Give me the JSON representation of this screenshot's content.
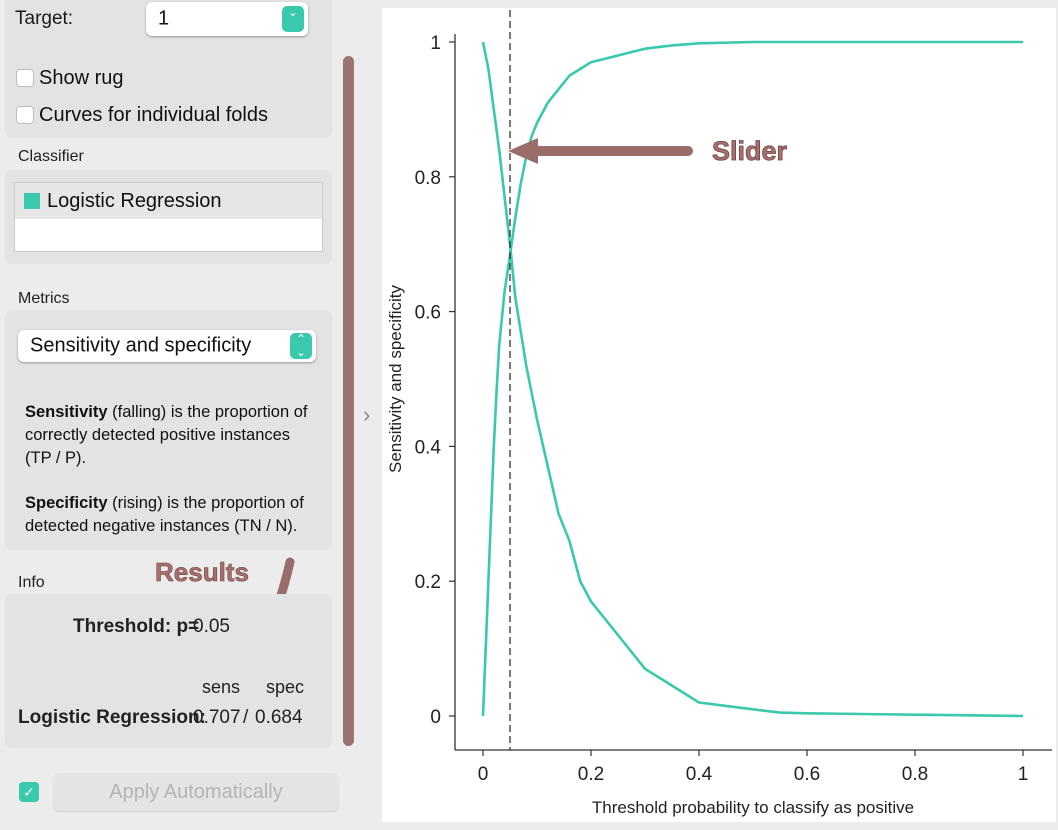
{
  "sidebar": {
    "target": {
      "label": "Target:",
      "value": "1"
    },
    "show_rug": {
      "label": "Show rug",
      "checked": false
    },
    "curves_folds": {
      "label": "Curves for individual folds",
      "checked": false
    },
    "classifier": {
      "heading": "Classifier",
      "items": [
        {
          "name": "Logistic Regression",
          "color": "#3ac9ad"
        }
      ]
    },
    "metrics": {
      "heading": "Metrics",
      "selected": "Sensitivity and specificity",
      "sens_term": "Sensitivity",
      "sens_text": "(falling) is the proportion of",
      "sens_line2": "correctly detected positive instances",
      "sens_line3": "(TP / P).",
      "spec_term": "Specificity",
      "spec_text": "(rising) is the proportion of",
      "spec_line2": "detected negative instances (TN / N)."
    },
    "info": {
      "heading": "Info",
      "threshold_label": "Threshold: p=",
      "threshold_value": "0.05",
      "col_sens": "sens",
      "col_spec": "spec",
      "row_label": "Logistic Regression:",
      "row_sens": "0.707",
      "row_sep": "/",
      "row_spec": "0.684"
    },
    "apply": {
      "label": "Apply Automatically",
      "checked": true
    }
  },
  "annotations": {
    "results": "Results",
    "slider": "Slider",
    "color": "#a7706c"
  },
  "chart_data": {
    "type": "line",
    "xlabel": "Threshold probability to classify as positive",
    "ylabel": "Sensitivity and specificity",
    "xlim": [
      0,
      1
    ],
    "ylim": [
      0,
      1
    ],
    "xticks": [
      "0",
      "0.2",
      "0.4",
      "0.6",
      "0.8",
      "1"
    ],
    "yticks": [
      "0",
      "0.2",
      "0.4",
      "0.6",
      "0.8",
      "1"
    ],
    "threshold": 0.05,
    "series": [
      {
        "name": "Sensitivity",
        "color": "#3ac9ad",
        "x": [
          0,
          0.01,
          0.02,
          0.03,
          0.04,
          0.05,
          0.06,
          0.07,
          0.08,
          0.09,
          0.1,
          0.12,
          0.14,
          0.16,
          0.18,
          0.2,
          0.22,
          0.25,
          0.28,
          0.3,
          0.33,
          0.36,
          0.4,
          0.45,
          0.5,
          0.55,
          0.6,
          0.7,
          0.8,
          0.9,
          1.0
        ],
        "y": [
          1.0,
          0.96,
          0.9,
          0.84,
          0.77,
          0.7,
          0.62,
          0.57,
          0.52,
          0.48,
          0.44,
          0.37,
          0.3,
          0.26,
          0.2,
          0.17,
          0.15,
          0.12,
          0.09,
          0.07,
          0.055,
          0.04,
          0.02,
          0.015,
          0.01,
          0.005,
          0.004,
          0.003,
          0.002,
          0.001,
          0.0
        ]
      },
      {
        "name": "Specificity",
        "color": "#3ac9ad",
        "x": [
          0,
          0.005,
          0.01,
          0.015,
          0.02,
          0.025,
          0.03,
          0.04,
          0.05,
          0.06,
          0.07,
          0.08,
          0.09,
          0.1,
          0.12,
          0.14,
          0.16,
          0.18,
          0.2,
          0.25,
          0.3,
          0.35,
          0.4,
          0.5,
          0.6,
          0.8,
          1.0
        ],
        "y": [
          0.0,
          0.1,
          0.2,
          0.3,
          0.4,
          0.48,
          0.55,
          0.63,
          0.684,
          0.74,
          0.79,
          0.83,
          0.86,
          0.88,
          0.91,
          0.93,
          0.95,
          0.96,
          0.97,
          0.98,
          0.99,
          0.995,
          0.998,
          1.0,
          1.0,
          1.0,
          1.0
        ]
      }
    ]
  }
}
